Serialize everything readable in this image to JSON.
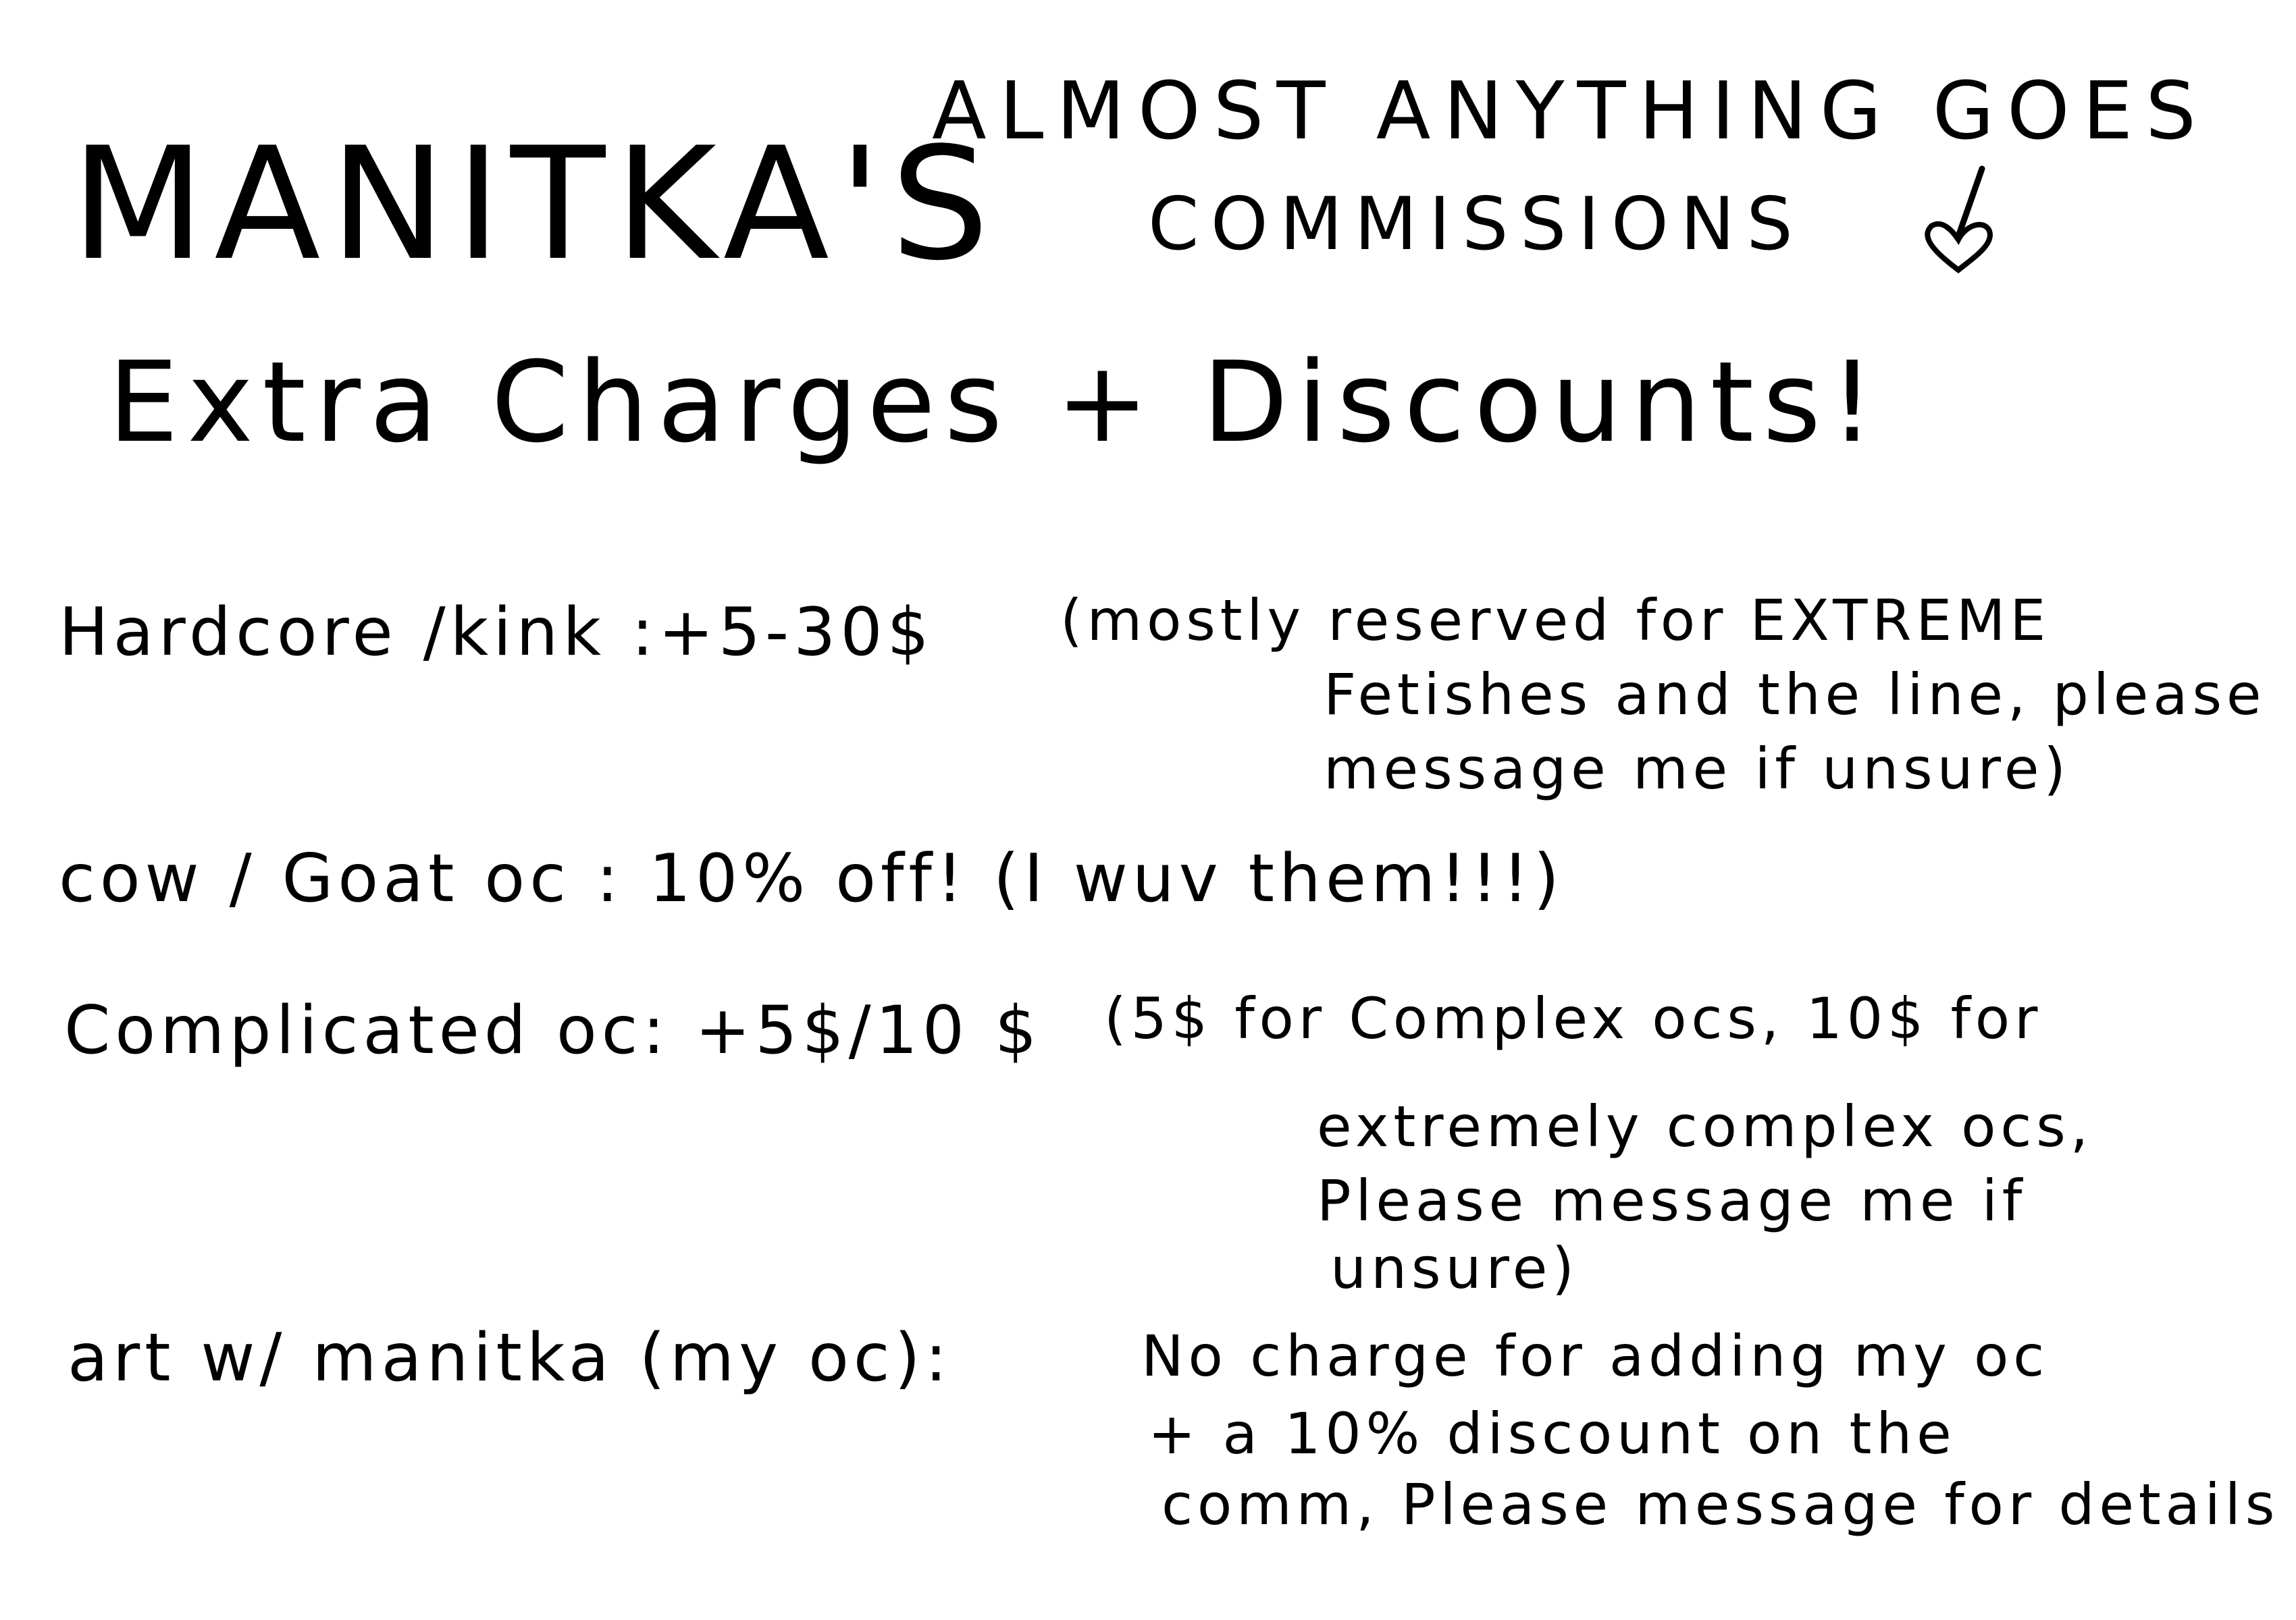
{
  "header": {
    "artist_name": "MANITKA'S",
    "tagline_line1": "ALMOST ANYTHING GOES",
    "tagline_line2": "COMMISSIONS",
    "heart_icon": "heart-doodle-icon"
  },
  "heading": "Extra Charges + Discounts!",
  "items": [
    {
      "label": "Hardcore /kink :+5-30$",
      "note_lines": [
        "(mostly reserved for EXTREME",
        "Fetishes and the line, please",
        "message me if unsure)"
      ]
    },
    {
      "label": "cow / Goat oc : 10% off! (I wuv them!!!)",
      "note_lines": []
    },
    {
      "label": "Complicated oc: +5$/10 $",
      "note_lines": [
        "(5$ for Complex ocs, 10$ for",
        "extremely complex ocs,",
        "Please message me if",
        "unsure)"
      ]
    },
    {
      "label": "art w/ manitka (my oc):",
      "note_lines": [
        "No charge for adding my oc",
        "+ a 10% discount on the",
        "comm, Please message for details"
      ]
    }
  ]
}
